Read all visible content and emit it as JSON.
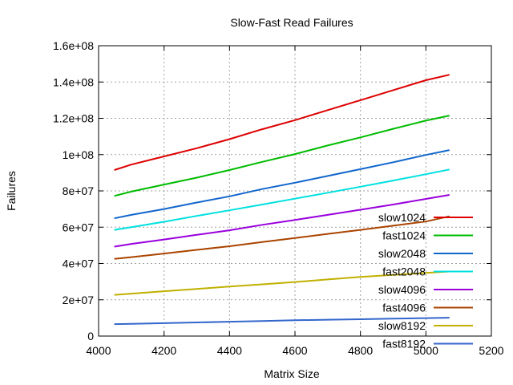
{
  "chart_data": {
    "type": "line",
    "title": "Slow-Fast Read Failures",
    "xlabel": "Matrix Size",
    "ylabel": "Failures",
    "xlim": [
      4000,
      5200
    ],
    "ylim": [
      0,
      160000000
    ],
    "x_ticks": [
      4000,
      4200,
      4400,
      4600,
      4800,
      5000,
      5200
    ],
    "x_tick_labels": [
      "4000",
      "4200",
      "4400",
      "4600",
      "4800",
      "5000",
      "5200"
    ],
    "y_ticks": [
      0,
      20000000,
      40000000,
      60000000,
      80000000,
      100000000,
      120000000,
      140000000,
      160000000
    ],
    "y_tick_labels": [
      "0",
      "2e+07",
      "4e+07",
      "6e+07",
      "8e+07",
      "1e+08",
      "1.2e+08",
      "1.4e+08",
      "1.6e+08"
    ],
    "grid": true,
    "legend_position": "bottom-right",
    "x": [
      4048,
      4100,
      4200,
      4300,
      4400,
      4500,
      4600,
      4700,
      4800,
      4900,
      5000,
      5072
    ],
    "series": [
      {
        "name": "slow1024",
        "color": "#dd0000",
        "values": [
          91500000,
          94500000,
          99000000,
          103500000,
          108500000,
          114000000,
          119000000,
          124500000,
          130000000,
          135500000,
          141000000,
          144000000
        ]
      },
      {
        "name": "fast1024",
        "color": "#00bb00",
        "values": [
          77200000,
          79600000,
          83500000,
          87300000,
          91500000,
          96000000,
          100300000,
          105000000,
          109500000,
          114200000,
          118700000,
          121500000
        ]
      },
      {
        "name": "slow2048",
        "color": "#1166cc",
        "values": [
          64900000,
          66800000,
          70000000,
          73600000,
          77000000,
          81000000,
          84500000,
          88200000,
          92000000,
          95800000,
          99800000,
          102500000
        ]
      },
      {
        "name": "fast2048",
        "color": "#00e0e0",
        "values": [
          58500000,
          60000000,
          63000000,
          66200000,
          69300000,
          72500000,
          75700000,
          79000000,
          82300000,
          85700000,
          89200000,
          91800000
        ]
      },
      {
        "name": "slow4096",
        "color": "#9900dd",
        "values": [
          49300000,
          50800000,
          53200000,
          55800000,
          58300000,
          61300000,
          64000000,
          66800000,
          69600000,
          72500000,
          75600000,
          77800000
        ]
      },
      {
        "name": "fast4096",
        "color": "#aa4400",
        "values": [
          42500000,
          43500000,
          45500000,
          47500000,
          49500000,
          51800000,
          54000000,
          56300000,
          58500000,
          60800000,
          63100000,
          66000000
        ]
      },
      {
        "name": "slow8192",
        "color": "#c0b000",
        "values": [
          22700000,
          23400000,
          24700000,
          26000000,
          27300000,
          28500000,
          29800000,
          31200000,
          32600000,
          33700000,
          34800000,
          35600000
        ]
      },
      {
        "name": "fast8192",
        "color": "#3366cc",
        "values": [
          6600000,
          6700000,
          7100000,
          7500000,
          7900000,
          8300000,
          8700000,
          9000000,
          9300000,
          9600000,
          9900000,
          10100000
        ]
      }
    ]
  }
}
